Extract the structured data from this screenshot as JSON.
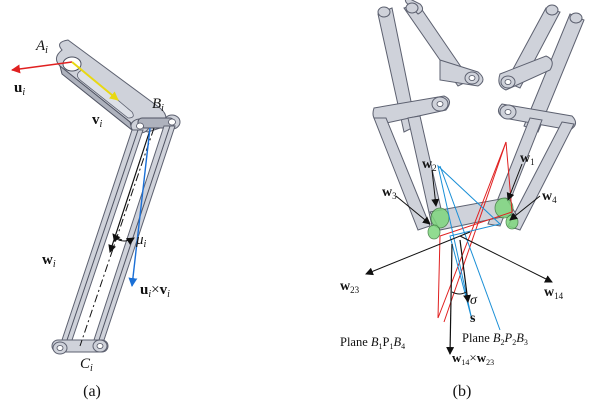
{
  "panel_a": {
    "caption": "(a)",
    "labels": {
      "A": "A",
      "A_sub": "i",
      "B": "B",
      "B_sub": "i",
      "C": "C",
      "C_sub": "i",
      "u": "u",
      "u_sub": "i",
      "v": "v",
      "v_sub": "i",
      "w": "w",
      "w_sub": "i",
      "mu": "μ",
      "mu_sub": "i",
      "uxv_u": "u",
      "uxv_u_sub": "i",
      "uxv_times": "×",
      "uxv_v": "v",
      "uxv_v_sub": "i"
    },
    "colors": {
      "u_vector": "#e02020",
      "v_vector": "#f2e81a",
      "cross_vector": "#1a6fd6",
      "mu_arrow": "#111111"
    }
  },
  "panel_b": {
    "caption": "(b)",
    "labels": {
      "w1": "w",
      "w1_sub": "1",
      "w2": "w",
      "w2_sub": "2",
      "w3": "w",
      "w3_sub": "3",
      "w4": "w",
      "w4_sub": "4",
      "w23": "w",
      "w23_sub": "23",
      "w14": "w",
      "w14_sub": "14",
      "sigma": "σ",
      "s": "s",
      "plane1_prefix": "Plane ",
      "plane1_B1": "B",
      "plane1_B1_sub": "1",
      "plane1_P1": "P",
      "plane1_P1_sub": "1",
      "plane1_B4": "B",
      "plane1_B4_sub": "4",
      "plane2_prefix": "Plane ",
      "plane2_B2": "B",
      "plane2_B2_sub": "2",
      "plane2_P2": "P",
      "plane2_P2_sub": "2",
      "plane2_B3": "B",
      "plane2_B3_sub": "3",
      "cross_w14": "w",
      "cross_w14_sub": "14",
      "cross_times": "×",
      "cross_w23": "w",
      "cross_w23_sub": "23"
    },
    "colors": {
      "plane_red": "#e02020",
      "plane_blue": "#1a8fd6",
      "joint_green": "#7ed67e"
    }
  }
}
